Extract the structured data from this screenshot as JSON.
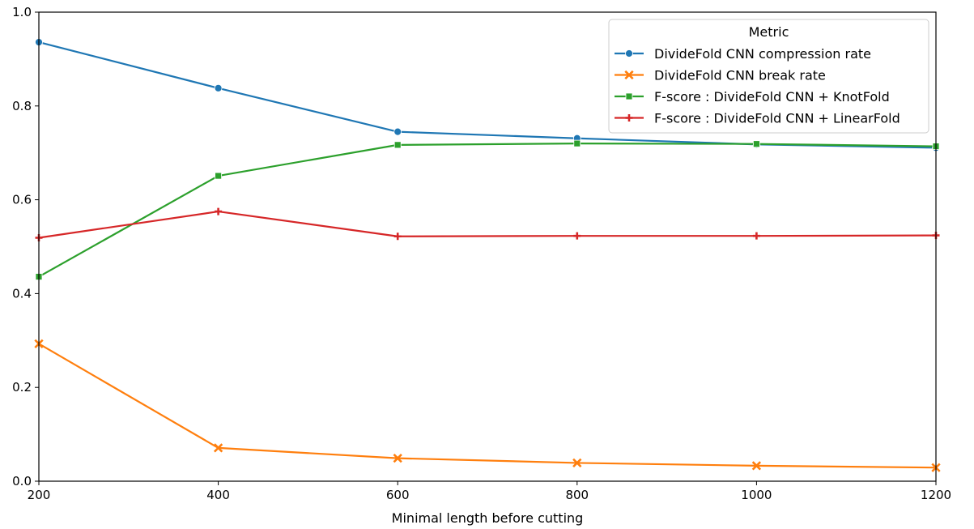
{
  "chart_data": {
    "type": "line",
    "title": "",
    "xlabel": "Minimal length before cutting",
    "ylabel": "",
    "x": [
      200,
      400,
      600,
      800,
      1000,
      1200
    ],
    "xlim": [
      200,
      1200
    ],
    "ylim": [
      0.0,
      1.0
    ],
    "xticks": [
      "200",
      "400",
      "600",
      "800",
      "1000",
      "1200"
    ],
    "yticks": [
      "0.0",
      "0.2",
      "0.4",
      "0.6",
      "0.8",
      "1.0"
    ],
    "grid": false,
    "legend": {
      "title": "Metric",
      "placement": "top-right"
    },
    "series": [
      {
        "name": "DivideFold CNN compression rate",
        "color": "#1f77b4",
        "marker": "circle",
        "values": [
          0.936,
          0.838,
          0.745,
          0.731,
          0.718,
          0.711
        ]
      },
      {
        "name": "DivideFold CNN break rate",
        "color": "#ff7f0e",
        "marker": "x",
        "values": [
          0.293,
          0.071,
          0.049,
          0.039,
          0.033,
          0.029
        ]
      },
      {
        "name": "F-score : DivideFold CNN + KnotFold",
        "color": "#2ca02c",
        "marker": "square",
        "values": [
          0.436,
          0.651,
          0.717,
          0.72,
          0.719,
          0.714
        ]
      },
      {
        "name": "F-score : DivideFold CNN + LinearFold",
        "color": "#d62728",
        "marker": "plus",
        "values": [
          0.519,
          0.575,
          0.522,
          0.523,
          0.523,
          0.524
        ]
      }
    ]
  }
}
